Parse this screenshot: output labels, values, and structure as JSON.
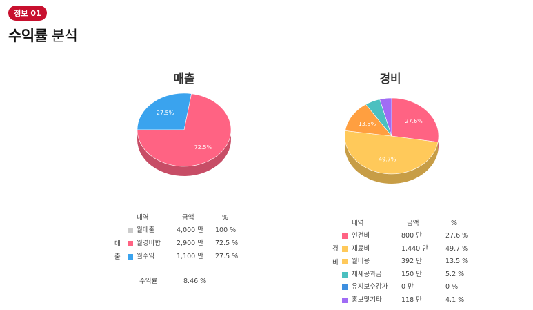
{
  "header": {
    "badge": "정보 01",
    "title_strong": "수익률",
    "title_rest": "분석"
  },
  "chart_data": [
    {
      "type": "pie",
      "title": "매출",
      "slices": [
        {
          "label": "월수익",
          "value": 27.5,
          "display": "27.5%",
          "color": "#3aa3ee"
        },
        {
          "label": "월경비합",
          "value": 72.5,
          "display": "72.5%",
          "color": "#ff6383"
        }
      ]
    },
    {
      "type": "pie",
      "title": "경비",
      "slices": [
        {
          "label": "인건비",
          "value": 27.6,
          "display": "27.6%",
          "color": "#ff6383"
        },
        {
          "label": "재료비",
          "value": 49.7,
          "display": "49.7%",
          "color": "#ffc95a"
        },
        {
          "label": "월비용",
          "value": 13.5,
          "display": "13.5%",
          "color": "#ff9f40"
        },
        {
          "label": "제세공과금",
          "value": 5.2,
          "display": "",
          "color": "#4bc0c0"
        },
        {
          "label": "유지보수감가",
          "value": 0,
          "display": "",
          "color": "#3d8fe0"
        },
        {
          "label": "홍보및기타",
          "value": 4.1,
          "display": "",
          "color": "#a06cf5"
        }
      ]
    }
  ],
  "sales_table": {
    "side_label": [
      "매",
      "출"
    ],
    "headers": [
      "내역",
      "금액",
      "%"
    ],
    "rows": [
      {
        "name": "월매출",
        "amount": "4,000 만",
        "pct": "100 %",
        "color": "#cccccc"
      },
      {
        "name": "월경비합",
        "amount": "2,900 만",
        "pct": "72.5 %",
        "color": "#ff6383"
      },
      {
        "name": "월수익",
        "amount": "1,100 만",
        "pct": "27.5 %",
        "color": "#3aa3ee"
      }
    ],
    "profit_label": "수익률",
    "profit_value": "8.46 %"
  },
  "expense_table": {
    "side_label": [
      "경",
      "비"
    ],
    "headers": [
      "내역",
      "금액",
      "%"
    ],
    "rows": [
      {
        "name": "인건비",
        "amount": "800 만",
        "pct": "27.6 %",
        "color": "#ff6383"
      },
      {
        "name": "재료비",
        "amount": "1,440 만",
        "pct": "49.7 %",
        "color": "#ffc95a"
      },
      {
        "name": "월비용",
        "amount": "392 만",
        "pct": "13.5 %",
        "color": "#ffc95a"
      },
      {
        "name": "제세공과금",
        "amount": "150 만",
        "pct": "5.2 %",
        "color": "#4bc0c0"
      },
      {
        "name": "유지보수감가",
        "amount": "0 만",
        "pct": "0 %",
        "color": "#3d8fe0"
      },
      {
        "name": "홍보및기타",
        "amount": "118 만",
        "pct": "4.1 %",
        "color": "#a06cf5"
      }
    ]
  }
}
